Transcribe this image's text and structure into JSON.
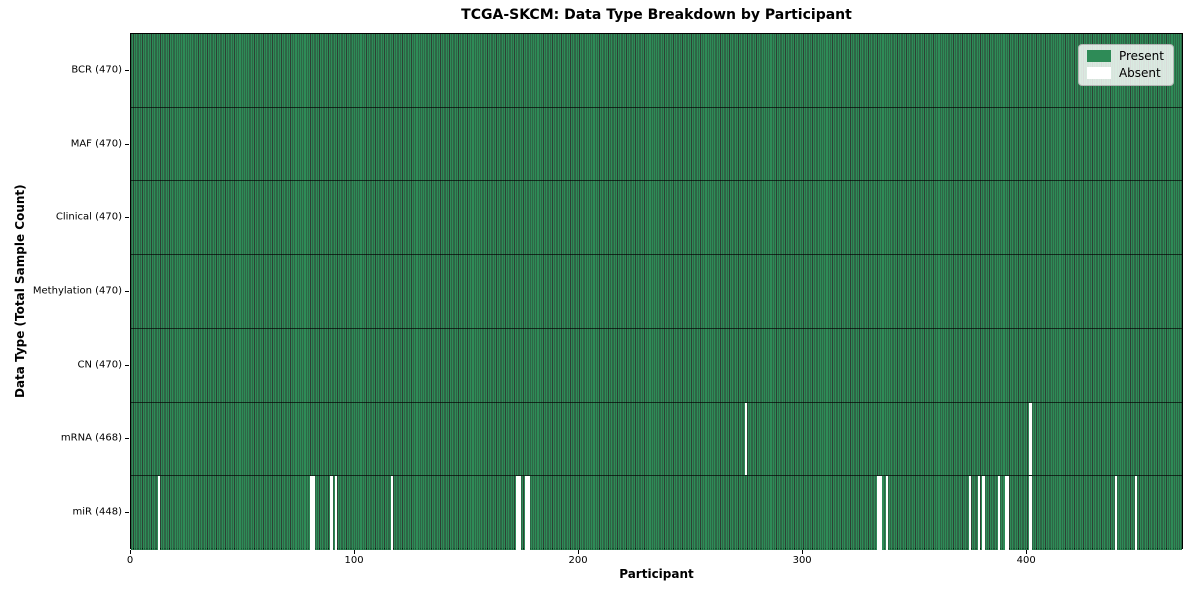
{
  "chart_data": {
    "type": "heatmap",
    "title": "TCGA-SKCM: Data Type Breakdown by Participant",
    "xlabel": "Participant",
    "ylabel": "Data Type (Total Sample Count)",
    "x_ticks": [
      0,
      100,
      200,
      300,
      400
    ],
    "x_range": [
      0,
      470
    ],
    "n_participants": 470,
    "grid": false,
    "legend_position": "upper right",
    "rows": [
      {
        "data_type": "BCR",
        "label": "BCR (470)",
        "present_count": 470,
        "absent_count": 0,
        "absent_participants": []
      },
      {
        "data_type": "MAF",
        "label": "MAF (470)",
        "present_count": 470,
        "absent_count": 0,
        "absent_participants": []
      },
      {
        "data_type": "Clinical",
        "label": "Clinical (470)",
        "present_count": 470,
        "absent_count": 0,
        "absent_participants": []
      },
      {
        "data_type": "Methylation",
        "label": "Methylation (470)",
        "present_count": 470,
        "absent_count": 0,
        "absent_participants": []
      },
      {
        "data_type": "CN",
        "label": "CN (470)",
        "present_count": 470,
        "absent_count": 0,
        "absent_participants": []
      },
      {
        "data_type": "mRNA",
        "label": "mRNA (468)",
        "present_count": 468,
        "absent_count": 2,
        "absent_participants": [
          274,
          401
        ]
      },
      {
        "data_type": "miR",
        "label": "miR (448)",
        "present_count": 448,
        "absent_count": 22,
        "absent_participants": [
          12,
          80,
          81,
          89,
          91,
          116,
          172,
          173,
          176,
          177,
          333,
          334,
          337,
          374,
          378,
          380,
          387,
          390,
          391,
          401,
          439,
          448
        ]
      }
    ],
    "legend": {
      "entries": [
        {
          "label": "Present",
          "color": "#2e8b57"
        },
        {
          "label": "Absent",
          "color": "#ffffff"
        }
      ]
    },
    "colors": {
      "present": "#2e8b57",
      "absent": "#ffffff",
      "bar_edge": "#0a2012",
      "row_separator": "#000000",
      "plot_border": "#000000",
      "background": "#ffffff"
    }
  }
}
